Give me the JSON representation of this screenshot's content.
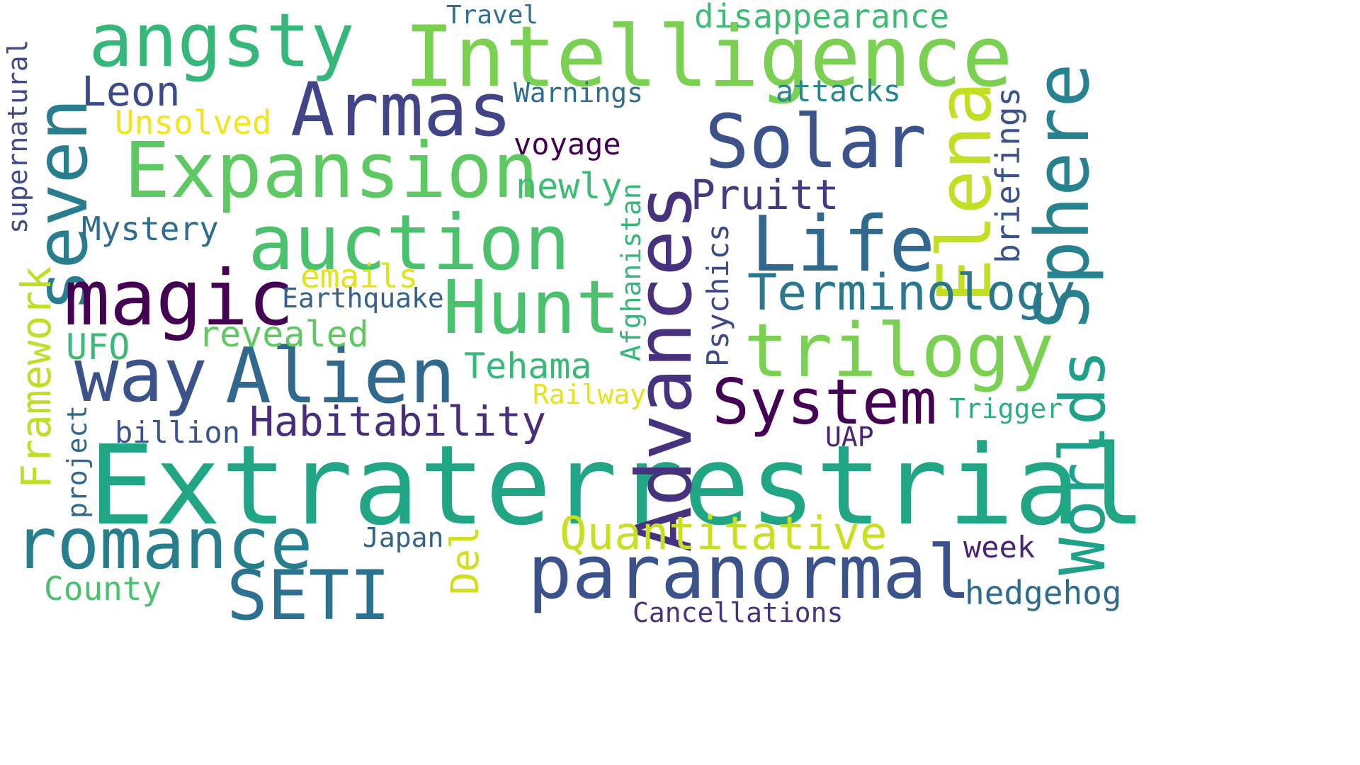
{
  "words": [
    {
      "text": "Extraterrestrial",
      "color": "#21a685",
      "vertical": false
    },
    {
      "text": "Intelligence",
      "color": "#7ad151",
      "vertical": false
    },
    {
      "text": "Advances",
      "color": "#46327e",
      "vertical": true
    },
    {
      "text": "Expansion",
      "color": "#5ec962",
      "vertical": false
    },
    {
      "text": "angsty",
      "color": "#35b779",
      "vertical": false
    },
    {
      "text": "Armas",
      "color": "#414487",
      "vertical": false
    },
    {
      "text": "seven",
      "color": "#287d8e",
      "vertical": true
    },
    {
      "text": "auction",
      "color": "#4ac16d",
      "vertical": false
    },
    {
      "text": "Solar",
      "color": "#3b528b",
      "vertical": false
    },
    {
      "text": "Elena",
      "color": "#c2df23",
      "vertical": true
    },
    {
      "text": "Sphere",
      "color": "#26828e",
      "vertical": true
    },
    {
      "text": "Life",
      "color": "#31688e",
      "vertical": false
    },
    {
      "text": "magic",
      "color": "#440154",
      "vertical": false
    },
    {
      "text": "Hunt",
      "color": "#4ac16d",
      "vertical": false
    },
    {
      "text": "trilogy",
      "color": "#7ad151",
      "vertical": false
    },
    {
      "text": "way",
      "color": "#3b528b",
      "vertical": false
    },
    {
      "text": "Alien",
      "color": "#31688e",
      "vertical": false
    },
    {
      "text": "System",
      "color": "#440154",
      "vertical": false
    },
    {
      "text": "Worlds",
      "color": "#1fa088",
      "vertical": true
    },
    {
      "text": "romance",
      "color": "#277f8e",
      "vertical": false
    },
    {
      "text": "paranormal",
      "color": "#3b528b",
      "vertical": false
    },
    {
      "text": "SETI",
      "color": "#2c728e",
      "vertical": false
    },
    {
      "text": "Quantitative",
      "color": "#c8e020",
      "vertical": false
    },
    {
      "text": "Terminology",
      "color": "#2a788e",
      "vertical": false
    },
    {
      "text": "Habitability",
      "color": "#472d7b",
      "vertical": false
    },
    {
      "text": "Pruitt",
      "color": "#443983",
      "vertical": false
    },
    {
      "text": "Leon",
      "color": "#3e4989",
      "vertical": false
    },
    {
      "text": "Mystery",
      "color": "#2f6c8e",
      "vertical": false
    },
    {
      "text": "Framework",
      "color": "#bddf26",
      "vertical": true
    },
    {
      "text": "supernatural",
      "color": "#3e4a89",
      "vertical": true
    },
    {
      "text": "disappearance",
      "color": "#3fbc73",
      "vertical": false
    },
    {
      "text": "Travel",
      "color": "#2d718e",
      "vertical": false
    },
    {
      "text": "Warnings",
      "color": "#2e6e8e",
      "vertical": false
    },
    {
      "text": "attacks",
      "color": "#25858e",
      "vertical": false
    },
    {
      "text": "briefings",
      "color": "#3b528b",
      "vertical": true
    },
    {
      "text": "Unsolved",
      "color": "#f1e51d",
      "vertical": false
    },
    {
      "text": "voyage",
      "color": "#440154",
      "vertical": false
    },
    {
      "text": "newly",
      "color": "#3dbc74",
      "vertical": false
    },
    {
      "text": "Afghanistan",
      "color": "#35b779",
      "vertical": true
    },
    {
      "text": "Psychics",
      "color": "#3e4989",
      "vertical": true
    },
    {
      "text": "emails",
      "color": "#e2e418",
      "vertical": false
    },
    {
      "text": "Earthquake",
      "color": "#33638d",
      "vertical": false
    },
    {
      "text": "revealed",
      "color": "#5ec962",
      "vertical": false
    },
    {
      "text": "UFO",
      "color": "#3aba76",
      "vertical": false
    },
    {
      "text": "Tehama",
      "color": "#38b977",
      "vertical": false
    },
    {
      "text": "Railway",
      "color": "#e5e419",
      "vertical": false
    },
    {
      "text": "Trigger",
      "color": "#2ab07f",
      "vertical": false
    },
    {
      "text": "billion",
      "color": "#3b528b",
      "vertical": false
    },
    {
      "text": "project",
      "color": "#31688e",
      "vertical": true
    },
    {
      "text": "UAP",
      "color": "#482576",
      "vertical": false
    },
    {
      "text": "Japan",
      "color": "#33638d",
      "vertical": false
    },
    {
      "text": "Del",
      "color": "#d0e11c",
      "vertical": true
    },
    {
      "text": "week",
      "color": "#482475",
      "vertical": false
    },
    {
      "text": "County",
      "color": "#4ac16d",
      "vertical": false
    },
    {
      "text": "hedgehog",
      "color": "#306a8e",
      "vertical": false
    },
    {
      "text": "Cancellations",
      "color": "#46337f",
      "vertical": false
    }
  ]
}
